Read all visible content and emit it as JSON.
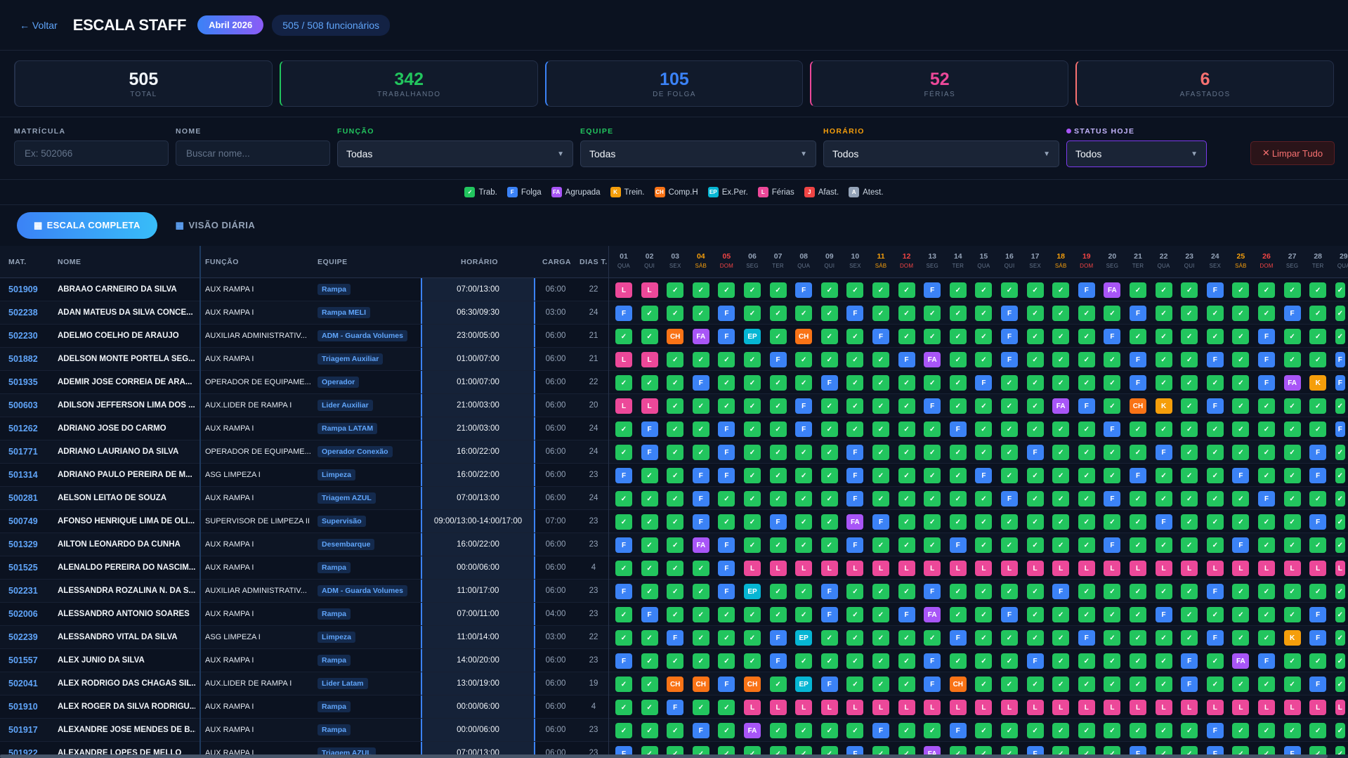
{
  "header": {
    "back": "← Voltar",
    "title": "ESCALA STAFF",
    "month": "Abril 2026",
    "count": "505  /  508  funcionários"
  },
  "stats": [
    {
      "value": "505",
      "label": "TOTAL",
      "color": "#f1f5f9",
      "border": "#243049"
    },
    {
      "value": "342",
      "label": "TRABALHANDO",
      "color": "#22c55e",
      "border": "#22c55e"
    },
    {
      "value": "105",
      "label": "DE FOLGA",
      "color": "#3b82f6",
      "border": "#3b82f6"
    },
    {
      "value": "52",
      "label": "FÉRIAS",
      "color": "#ec4899",
      "border": "#ec4899"
    },
    {
      "value": "6",
      "label": "AFASTADOS",
      "color": "#f87171",
      "border": "#f87171"
    }
  ],
  "filters": {
    "matricula": {
      "label": "MATRÍCULA",
      "placeholder": "Ex: 502066"
    },
    "nome": {
      "label": "NOME",
      "placeholder": "Buscar nome..."
    },
    "funcao": {
      "label": "FUNÇÃO",
      "value": "Todas"
    },
    "equipe": {
      "label": "EQUIPE",
      "value": "Todas"
    },
    "horario": {
      "label": "HORÁRIO",
      "value": "Todos"
    },
    "status": {
      "label": "STATUS HOJE",
      "value": "Todos"
    },
    "clear": "Limpar Tudo"
  },
  "legend": [
    {
      "code": "✓",
      "label": "Trab.",
      "color": "#22c55e"
    },
    {
      "code": "F",
      "label": "Folga",
      "color": "#3b82f6"
    },
    {
      "code": "FA",
      "label": "Agrupada",
      "color": "#a855f7"
    },
    {
      "code": "K",
      "label": "Trein.",
      "color": "#f59e0b"
    },
    {
      "code": "CH",
      "label": "Comp.H",
      "color": "#f97316"
    },
    {
      "code": "EP",
      "label": "Ex.Per.",
      "color": "#06b6d4"
    },
    {
      "code": "L",
      "label": "Férias",
      "color": "#ec4899"
    },
    {
      "code": "J",
      "label": "Afast.",
      "color": "#ef4444"
    },
    {
      "code": "A",
      "label": "Atest.",
      "color": "#94a3b8"
    }
  ],
  "tabs": {
    "active": "ESCALA COMPLETA",
    "other": "VISÃO DIÁRIA"
  },
  "columns": {
    "mat": "MAT.",
    "nome": "NOME",
    "funcao": "FUNÇÃO",
    "equipe": "EQUIPE",
    "horario": "HORÁRIO",
    "carga": "CARGA",
    "dias": "DIAS T."
  },
  "days": [
    {
      "d": "01",
      "w": "QUA"
    },
    {
      "d": "02",
      "w": "QUI"
    },
    {
      "d": "03",
      "w": "SEX"
    },
    {
      "d": "04",
      "w": "SÁB"
    },
    {
      "d": "05",
      "w": "DOM"
    },
    {
      "d": "06",
      "w": "SEG"
    },
    {
      "d": "07",
      "w": "TER"
    },
    {
      "d": "08",
      "w": "QUA"
    },
    {
      "d": "09",
      "w": "QUI"
    },
    {
      "d": "10",
      "w": "SEX"
    },
    {
      "d": "11",
      "w": "SÁB"
    },
    {
      "d": "12",
      "w": "DOM"
    },
    {
      "d": "13",
      "w": "SEG"
    },
    {
      "d": "14",
      "w": "TER"
    },
    {
      "d": "15",
      "w": "QUA"
    },
    {
      "d": "16",
      "w": "QUI"
    },
    {
      "d": "17",
      "w": "SEX"
    },
    {
      "d": "18",
      "w": "SÁB"
    },
    {
      "d": "19",
      "w": "DOM"
    },
    {
      "d": "20",
      "w": "SEG"
    },
    {
      "d": "21",
      "w": "TER"
    },
    {
      "d": "22",
      "w": "QUA"
    },
    {
      "d": "23",
      "w": "QUI"
    },
    {
      "d": "24",
      "w": "SEX"
    },
    {
      "d": "25",
      "w": "SÁB"
    },
    {
      "d": "26",
      "w": "DOM"
    },
    {
      "d": "27",
      "w": "SEG"
    },
    {
      "d": "28",
      "w": "TER"
    },
    {
      "d": "29",
      "w": "QUA"
    }
  ],
  "colors": {
    "T": "#22c55e",
    "F": "#3b82f6",
    "FA": "#a855f7",
    "K": "#f59e0b",
    "CH": "#f97316",
    "EP": "#06b6d4",
    "L": "#ec4899",
    "J": "#ef4444",
    "A": "#94a3b8",
    "sat": "#f59e0b",
    "sun": "#ef4444",
    "weekday": "#94a3b8"
  },
  "rows": [
    {
      "mat": "501909",
      "nome": "ABRAAO CARNEIRO DA SILVA",
      "func": "AUX RAMPA I",
      "eq": "Rampa",
      "hor": "07:00/13:00",
      "carga": "06:00",
      "dias": "22",
      "s": [
        "L",
        "L",
        "T",
        "T",
        "T",
        "T",
        "T",
        "F",
        "T",
        "T",
        "T",
        "T",
        "F",
        "T",
        "T",
        "T",
        "T",
        "T",
        "F",
        "FA",
        "T",
        "T",
        "T",
        "F",
        "T",
        "T",
        "T",
        "T",
        "T"
      ]
    },
    {
      "mat": "502238",
      "nome": "ADAN MATEUS DA SILVA CONCE...",
      "func": "AUX RAMPA I",
      "eq": "Rampa MELI",
      "hor": "06:30/09:30",
      "carga": "03:00",
      "dias": "24",
      "s": [
        "F",
        "T",
        "T",
        "T",
        "F",
        "T",
        "T",
        "T",
        "T",
        "F",
        "T",
        "T",
        "T",
        "T",
        "T",
        "F",
        "T",
        "T",
        "T",
        "T",
        "F",
        "T",
        "T",
        "T",
        "T",
        "T",
        "F",
        "T",
        "T"
      ]
    },
    {
      "mat": "502230",
      "nome": "ADELMO COELHO DE ARAUJO",
      "func": "AUXILIAR ADMINISTRATIV...",
      "eq": "ADM - Guarda Volumes",
      "hor": "23:00/05:00",
      "carga": "06:00",
      "dias": "21",
      "s": [
        "T",
        "T",
        "CH",
        "FA",
        "F",
        "EP",
        "T",
        "CH",
        "T",
        "T",
        "F",
        "T",
        "T",
        "T",
        "T",
        "F",
        "T",
        "T",
        "T",
        "F",
        "T",
        "T",
        "T",
        "T",
        "T",
        "F",
        "T",
        "T",
        "T"
      ]
    },
    {
      "mat": "501882",
      "nome": "ADELSON MONTE PORTELA SEG...",
      "func": "AUX RAMPA I",
      "eq": "Triagem Auxiliar",
      "hor": "01:00/07:00",
      "carga": "06:00",
      "dias": "21",
      "s": [
        "L",
        "L",
        "T",
        "T",
        "T",
        "T",
        "F",
        "T",
        "T",
        "T",
        "T",
        "F",
        "FA",
        "T",
        "T",
        "F",
        "T",
        "T",
        "T",
        "T",
        "F",
        "T",
        "T",
        "F",
        "T",
        "F",
        "T",
        "T",
        "F"
      ]
    },
    {
      "mat": "501935",
      "nome": "ADEMIR JOSE CORREIA DE ARA...",
      "func": "OPERADOR DE EQUIPAME...",
      "eq": "Operador",
      "hor": "01:00/07:00",
      "carga": "06:00",
      "dias": "22",
      "s": [
        "T",
        "T",
        "T",
        "F",
        "T",
        "T",
        "T",
        "T",
        "F",
        "T",
        "T",
        "T",
        "T",
        "T",
        "F",
        "T",
        "T",
        "T",
        "T",
        "T",
        "F",
        "T",
        "T",
        "T",
        "T",
        "F",
        "FA",
        "K",
        "F"
      ]
    },
    {
      "mat": "500603",
      "nome": "ADILSON JEFFERSON LIMA DOS ...",
      "func": "AUX.LIDER DE RAMPA I",
      "eq": "Lider Auxiliar",
      "hor": "21:00/03:00",
      "carga": "06:00",
      "dias": "20",
      "s": [
        "L",
        "L",
        "T",
        "T",
        "T",
        "T",
        "T",
        "F",
        "T",
        "T",
        "T",
        "T",
        "F",
        "T",
        "T",
        "T",
        "T",
        "FA",
        "F",
        "T",
        "CH",
        "K",
        "T",
        "F",
        "T",
        "T",
        "T",
        "T",
        "T"
      ]
    },
    {
      "mat": "501262",
      "nome": "ADRIANO JOSE DO CARMO",
      "func": "AUX RAMPA I",
      "eq": "Rampa LATAM",
      "hor": "21:00/03:00",
      "carga": "06:00",
      "dias": "24",
      "s": [
        "T",
        "F",
        "T",
        "T",
        "F",
        "T",
        "T",
        "F",
        "T",
        "T",
        "T",
        "T",
        "T",
        "F",
        "T",
        "T",
        "T",
        "T",
        "T",
        "F",
        "T",
        "T",
        "T",
        "T",
        "T",
        "T",
        "T",
        "T",
        "F"
      ]
    },
    {
      "mat": "501771",
      "nome": "ADRIANO LAURIANO DA SILVA",
      "func": "OPERADOR DE EQUIPAME...",
      "eq": "Operador Conexão",
      "hor": "16:00/22:00",
      "carga": "06:00",
      "dias": "24",
      "s": [
        "T",
        "F",
        "T",
        "T",
        "F",
        "T",
        "T",
        "T",
        "T",
        "F",
        "T",
        "T",
        "T",
        "T",
        "T",
        "T",
        "F",
        "T",
        "T",
        "T",
        "T",
        "F",
        "T",
        "T",
        "T",
        "T",
        "T",
        "F",
        "T"
      ]
    },
    {
      "mat": "501314",
      "nome": "ADRIANO PAULO PEREIRA DE M...",
      "func": "ASG LIMPEZA I",
      "eq": "Limpeza",
      "hor": "16:00/22:00",
      "carga": "06:00",
      "dias": "23",
      "s": [
        "F",
        "T",
        "T",
        "F",
        "F",
        "T",
        "T",
        "T",
        "T",
        "F",
        "T",
        "T",
        "T",
        "T",
        "F",
        "T",
        "T",
        "T",
        "T",
        "T",
        "F",
        "T",
        "T",
        "T",
        "F",
        "T",
        "T",
        "F",
        "T"
      ]
    },
    {
      "mat": "500281",
      "nome": "AELSON LEITAO DE SOUZA",
      "func": "AUX RAMPA I",
      "eq": "Triagem AZUL",
      "hor": "07:00/13:00",
      "carga": "06:00",
      "dias": "24",
      "s": [
        "T",
        "T",
        "T",
        "F",
        "T",
        "T",
        "T",
        "T",
        "T",
        "F",
        "T",
        "T",
        "T",
        "T",
        "T",
        "F",
        "T",
        "T",
        "T",
        "F",
        "T",
        "T",
        "T",
        "T",
        "T",
        "F",
        "T",
        "T",
        "T"
      ]
    },
    {
      "mat": "500749",
      "nome": "AFONSO HENRIQUE LIMA DE OLI...",
      "func": "SUPERVISOR DE LIMPEZA II",
      "eq": "Supervisão",
      "hor": "09:00/13:00-14:00/17:00",
      "carga": "07:00",
      "dias": "23",
      "s": [
        "T",
        "T",
        "T",
        "F",
        "T",
        "T",
        "F",
        "T",
        "T",
        "FA",
        "F",
        "T",
        "T",
        "T",
        "T",
        "T",
        "T",
        "T",
        "T",
        "T",
        "T",
        "F",
        "T",
        "T",
        "T",
        "T",
        "T",
        "F",
        "T"
      ]
    },
    {
      "mat": "501329",
      "nome": "AILTON LEONARDO DA CUNHA",
      "func": "AUX RAMPA I",
      "eq": "Desembarque",
      "hor": "16:00/22:00",
      "carga": "06:00",
      "dias": "23",
      "s": [
        "F",
        "T",
        "T",
        "FA",
        "F",
        "T",
        "T",
        "T",
        "T",
        "F",
        "T",
        "T",
        "T",
        "F",
        "T",
        "T",
        "T",
        "T",
        "T",
        "F",
        "T",
        "T",
        "T",
        "T",
        "F",
        "T",
        "T",
        "T",
        "T"
      ]
    },
    {
      "mat": "501525",
      "nome": "ALENALDO PEREIRA DO NASCIM...",
      "func": "AUX RAMPA I",
      "eq": "Rampa",
      "hor": "00:00/06:00",
      "carga": "06:00",
      "dias": "4",
      "s": [
        "T",
        "T",
        "T",
        "T",
        "F",
        "L",
        "L",
        "L",
        "L",
        "L",
        "L",
        "L",
        "L",
        "L",
        "L",
        "L",
        "L",
        "L",
        "L",
        "L",
        "L",
        "L",
        "L",
        "L",
        "L",
        "L",
        "L",
        "L",
        "L"
      ]
    },
    {
      "mat": "502231",
      "nome": "ALESSANDRA ROZALINA N. DA S...",
      "func": "AUXILIAR ADMINISTRATIV...",
      "eq": "ADM - Guarda Volumes",
      "hor": "11:00/17:00",
      "carga": "06:00",
      "dias": "23",
      "s": [
        "F",
        "T",
        "T",
        "T",
        "F",
        "EP",
        "T",
        "T",
        "F",
        "T",
        "T",
        "T",
        "F",
        "T",
        "T",
        "T",
        "T",
        "F",
        "T",
        "T",
        "T",
        "T",
        "T",
        "F",
        "T",
        "T",
        "T",
        "T",
        "T"
      ]
    },
    {
      "mat": "502006",
      "nome": "ALESSANDRO ANTONIO SOARES",
      "func": "AUX RAMPA I",
      "eq": "Rampa",
      "hor": "07:00/11:00",
      "carga": "04:00",
      "dias": "23",
      "s": [
        "T",
        "F",
        "T",
        "T",
        "T",
        "T",
        "T",
        "T",
        "F",
        "T",
        "T",
        "F",
        "FA",
        "T",
        "T",
        "F",
        "T",
        "T",
        "T",
        "T",
        "T",
        "F",
        "T",
        "T",
        "T",
        "T",
        "T",
        "F",
        "T"
      ]
    },
    {
      "mat": "502239",
      "nome": "ALESSANDRO VITAL DA SILVA",
      "func": "ASG LIMPEZA I",
      "eq": "Limpeza",
      "hor": "11:00/14:00",
      "carga": "03:00",
      "dias": "22",
      "s": [
        "T",
        "T",
        "F",
        "T",
        "T",
        "T",
        "F",
        "EP",
        "T",
        "T",
        "T",
        "T",
        "T",
        "F",
        "T",
        "T",
        "T",
        "T",
        "F",
        "T",
        "T",
        "T",
        "T",
        "F",
        "T",
        "T",
        "K",
        "F",
        "T"
      ]
    },
    {
      "mat": "501557",
      "nome": "ALEX JUNIO DA SILVA",
      "func": "AUX RAMPA I",
      "eq": "Rampa",
      "hor": "14:00/20:00",
      "carga": "06:00",
      "dias": "23",
      "s": [
        "F",
        "T",
        "T",
        "T",
        "T",
        "T",
        "F",
        "T",
        "T",
        "T",
        "T",
        "T",
        "F",
        "T",
        "T",
        "T",
        "F",
        "T",
        "T",
        "T",
        "T",
        "T",
        "F",
        "T",
        "FA",
        "F",
        "T",
        "T",
        "T"
      ]
    },
    {
      "mat": "502041",
      "nome": "ALEX RODRIGO DAS CHAGAS SIL...",
      "func": "AUX.LIDER DE RAMPA I",
      "eq": "Lider Latam",
      "hor": "13:00/19:00",
      "carga": "06:00",
      "dias": "19",
      "s": [
        "T",
        "T",
        "CH",
        "CH",
        "F",
        "CH",
        "T",
        "EP",
        "F",
        "T",
        "T",
        "T",
        "F",
        "CH",
        "T",
        "T",
        "T",
        "T",
        "T",
        "T",
        "T",
        "T",
        "F",
        "T",
        "T",
        "T",
        "T",
        "F",
        "T"
      ]
    },
    {
      "mat": "501910",
      "nome": "ALEX ROGER DA SILVA RODRIGU...",
      "func": "AUX RAMPA I",
      "eq": "Rampa",
      "hor": "00:00/06:00",
      "carga": "06:00",
      "dias": "4",
      "s": [
        "T",
        "T",
        "F",
        "T",
        "T",
        "L",
        "L",
        "L",
        "L",
        "L",
        "L",
        "L",
        "L",
        "L",
        "L",
        "L",
        "L",
        "L",
        "L",
        "L",
        "L",
        "L",
        "L",
        "L",
        "L",
        "L",
        "L",
        "L",
        "L"
      ]
    },
    {
      "mat": "501917",
      "nome": "ALEXANDRE JOSE MENDES DE B...",
      "func": "AUX RAMPA I",
      "eq": "Rampa",
      "hor": "00:00/06:00",
      "carga": "06:00",
      "dias": "23",
      "s": [
        "T",
        "T",
        "T",
        "F",
        "T",
        "FA",
        "T",
        "T",
        "T",
        "T",
        "F",
        "T",
        "T",
        "F",
        "T",
        "T",
        "T",
        "T",
        "T",
        "T",
        "T",
        "T",
        "T",
        "F",
        "T",
        "T",
        "T",
        "T",
        "T"
      ]
    },
    {
      "mat": "501922",
      "nome": "ALEXANDRE LOPES DE MELLO",
      "func": "AUX RAMPA I",
      "eq": "Triagem AZUL",
      "hor": "07:00/13:00",
      "carga": "06:00",
      "dias": "23",
      "s": [
        "F",
        "T",
        "T",
        "T",
        "T",
        "T",
        "T",
        "T",
        "T",
        "F",
        "T",
        "T",
        "FA",
        "T",
        "T",
        "T",
        "F",
        "T",
        "T",
        "T",
        "F",
        "T",
        "T",
        "F",
        "T",
        "T",
        "F",
        "T",
        "T"
      ]
    }
  ]
}
